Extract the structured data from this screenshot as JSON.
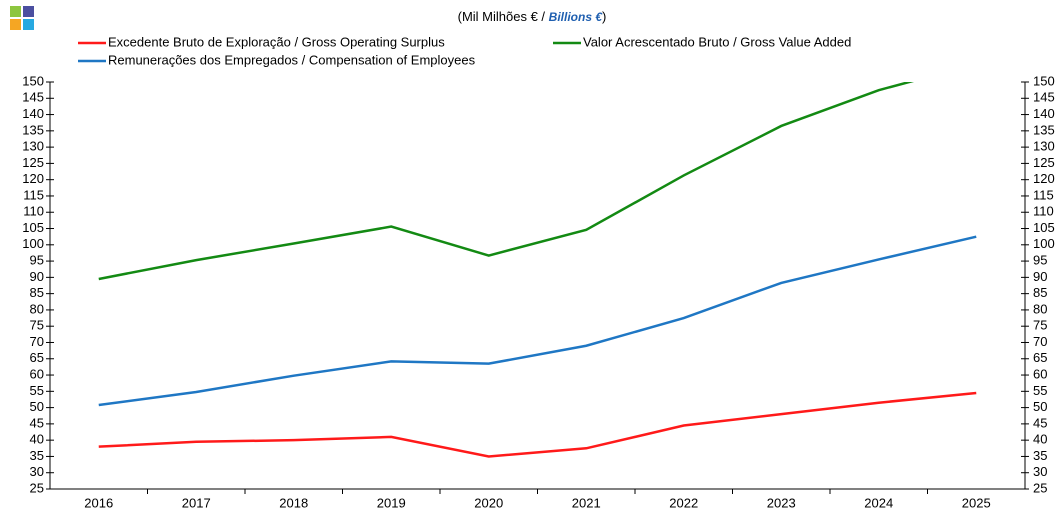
{
  "chart_data": {
    "type": "line",
    "title": [
      "(Mil Milhões  € / ",
      "Billions €",
      ")"
    ],
    "categories": [
      "2016",
      "2017",
      "2018",
      "2019",
      "2020",
      "2021",
      "2022",
      "2023",
      "2024",
      "2025"
    ],
    "series": [
      {
        "name": "Excedente Bruto de Exploração / Gross Operating Surplus",
        "color": "#ff1a1a",
        "values": [
          38,
          39.5,
          40,
          41,
          35,
          37.5,
          44.5,
          48,
          51.5,
          54.5
        ]
      },
      {
        "name": "Valor Acrescentado Bruto / Gross Value Added",
        "color": "#138a13",
        "values": [
          89.5,
          95.3,
          100.4,
          105.6,
          96.7,
          104.6,
          121.3,
          136.5,
          147.5,
          155.5
        ]
      },
      {
        "name": "Remunerações dos Empregados / Compensation of Employees",
        "color": "#1f77c4",
        "values": [
          50.8,
          54.8,
          59.8,
          64.2,
          63.5,
          69,
          77.5,
          88.3,
          95.5,
          102.5
        ]
      }
    ],
    "ylim": [
      25,
      150
    ],
    "yticks": [
      25,
      30,
      35,
      40,
      45,
      50,
      55,
      60,
      65,
      70,
      75,
      80,
      85,
      90,
      95,
      100,
      105,
      110,
      115,
      120,
      125,
      130,
      135,
      140,
      145,
      150
    ],
    "y2lim": [
      25,
      150
    ],
    "y2ticks": [
      25,
      30,
      35,
      40,
      45,
      50,
      55,
      60,
      65,
      70,
      75,
      80,
      85,
      90,
      95,
      100,
      105,
      110,
      115,
      120,
      125,
      130,
      135,
      140,
      145,
      150
    ]
  }
}
